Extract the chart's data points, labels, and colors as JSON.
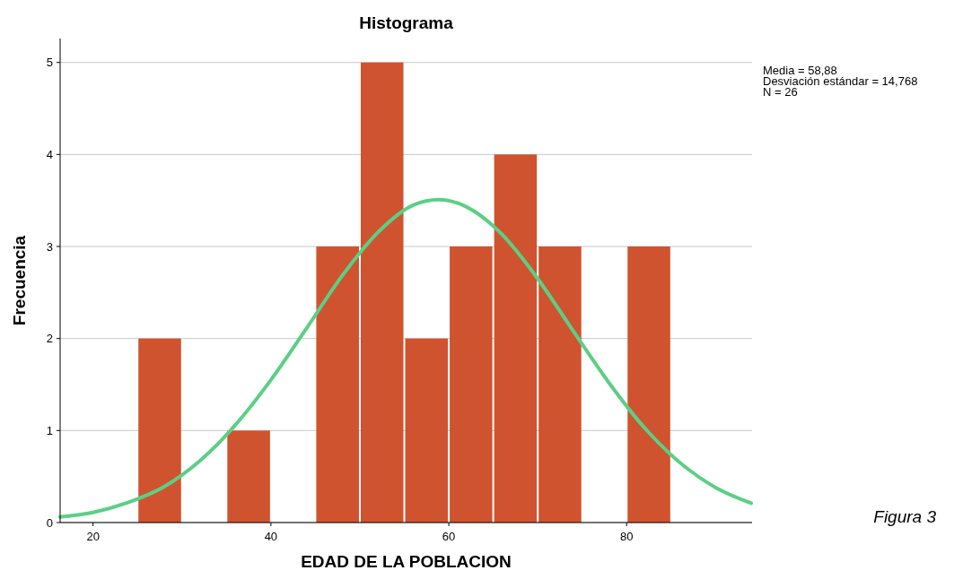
{
  "chart_data": {
    "type": "histogram",
    "title": "Histograma",
    "xlabel": "EDAD DE LA POBLACION",
    "ylabel": "Frecuencia",
    "bins": [
      25,
      30,
      35,
      40,
      45,
      50,
      55,
      60,
      65,
      70,
      75,
      80,
      85
    ],
    "values": [
      2,
      0,
      1,
      0,
      3,
      5,
      2,
      3,
      4,
      3,
      0,
      3
    ],
    "color": "#d0532f",
    "series": [
      {
        "type": "line",
        "color": "#5ccf85",
        "x": [
          16.3,
          20,
          24,
          28,
          32,
          36,
          40,
          44,
          48,
          52,
          56,
          58.88,
          62,
          66,
          70,
          74,
          78,
          82,
          86,
          90,
          94
        ],
        "values": [
          0.06,
          0.11,
          0.22,
          0.39,
          0.67,
          1.06,
          1.55,
          2.11,
          2.68,
          3.15,
          3.45,
          3.51,
          3.43,
          3.13,
          2.65,
          2.08,
          1.52,
          1.03,
          0.65,
          0.38,
          0.21
        ]
      }
    ],
    "xlim": [
      16.3,
      94.1
    ],
    "xticks": [
      20,
      40,
      60,
      80
    ],
    "ylim": [
      0,
      5.26
    ],
    "yticks": [
      0,
      1,
      2,
      3,
      4,
      5
    ],
    "grid": "y",
    "annotations": [
      "Media = 58,88",
      "Desviación estándar = 14,768",
      "N = 26",
      "Figura 3"
    ]
  }
}
